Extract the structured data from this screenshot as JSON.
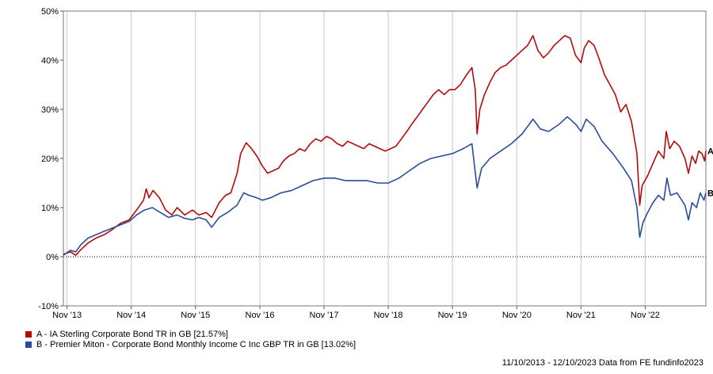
{
  "chart_data": {
    "type": "line",
    "ylim": [
      -10,
      50
    ],
    "y_ticks": [
      "-10%",
      "0%",
      "10%",
      "20%",
      "30%",
      "40%",
      "50%"
    ],
    "x_ticks": [
      {
        "label": "Nov '13",
        "date": "2013-11-01"
      },
      {
        "label": "Nov '14",
        "date": "2014-11-01"
      },
      {
        "label": "Nov '15",
        "date": "2015-11-01"
      },
      {
        "label": "Nov '16",
        "date": "2016-11-01"
      },
      {
        "label": "Nov '17",
        "date": "2017-11-01"
      },
      {
        "label": "Nov '18",
        "date": "2018-11-01"
      },
      {
        "label": "Nov '19",
        "date": "2019-11-01"
      },
      {
        "label": "Nov '20",
        "date": "2020-11-01"
      },
      {
        "label": "Nov '21",
        "date": "2021-11-01"
      },
      {
        "label": "Nov '22",
        "date": "2022-11-01"
      }
    ],
    "x_range": [
      "2013-10-11",
      "2023-10-12"
    ],
    "grid": "vertical",
    "zero_line": "dotted",
    "series": [
      {
        "marker": "A",
        "name": "A - IA Sterling Corporate Bond TR in GB [21.57%]",
        "color": "#b40a0a",
        "points": [
          [
            "2013-10-11",
            0.5
          ],
          [
            "2013-11-20",
            1.0
          ],
          [
            "2013-12-20",
            0.3
          ],
          [
            "2014-01-20",
            1.5
          ],
          [
            "2014-03-01",
            2.8
          ],
          [
            "2014-04-15",
            3.8
          ],
          [
            "2014-06-01",
            4.5
          ],
          [
            "2014-07-15",
            5.5
          ],
          [
            "2014-09-01",
            6.8
          ],
          [
            "2014-10-20",
            7.5
          ],
          [
            "2014-12-01",
            9.5
          ],
          [
            "2015-01-10",
            11.5
          ],
          [
            "2015-01-25",
            13.8
          ],
          [
            "2015-02-10",
            12.0
          ],
          [
            "2015-03-05",
            13.5
          ],
          [
            "2015-04-10",
            12.0
          ],
          [
            "2015-05-15",
            9.5
          ],
          [
            "2015-06-20",
            8.5
          ],
          [
            "2015-07-20",
            10.0
          ],
          [
            "2015-09-01",
            8.5
          ],
          [
            "2015-10-15",
            9.5
          ],
          [
            "2015-11-20",
            8.5
          ],
          [
            "2016-01-01",
            9.0
          ],
          [
            "2016-02-01",
            8.0
          ],
          [
            "2016-03-15",
            11.0
          ],
          [
            "2016-04-20",
            12.5
          ],
          [
            "2016-05-20",
            13.0
          ],
          [
            "2016-06-25",
            17.0
          ],
          [
            "2016-07-15",
            21.0
          ],
          [
            "2016-08-15",
            23.2
          ],
          [
            "2016-09-15",
            22.0
          ],
          [
            "2016-10-15",
            20.5
          ],
          [
            "2016-11-15",
            18.5
          ],
          [
            "2016-12-15",
            17.0
          ],
          [
            "2017-01-15",
            17.5
          ],
          [
            "2017-02-15",
            18.0
          ],
          [
            "2017-03-15",
            19.5
          ],
          [
            "2017-04-15",
            20.5
          ],
          [
            "2017-05-15",
            21.0
          ],
          [
            "2017-06-15",
            22.0
          ],
          [
            "2017-07-15",
            21.5
          ],
          [
            "2017-08-15",
            23.0
          ],
          [
            "2017-09-15",
            24.0
          ],
          [
            "2017-10-15",
            23.5
          ],
          [
            "2017-11-15",
            24.5
          ],
          [
            "2017-12-15",
            24.0
          ],
          [
            "2018-01-15",
            23.0
          ],
          [
            "2018-02-15",
            22.5
          ],
          [
            "2018-03-15",
            23.5
          ],
          [
            "2018-04-15",
            23.0
          ],
          [
            "2018-05-15",
            22.5
          ],
          [
            "2018-06-15",
            22.0
          ],
          [
            "2018-07-15",
            23.0
          ],
          [
            "2018-08-15",
            22.5
          ],
          [
            "2018-09-15",
            22.0
          ],
          [
            "2018-10-15",
            21.5
          ],
          [
            "2018-11-15",
            22.0
          ],
          [
            "2018-12-15",
            22.5
          ],
          [
            "2019-01-15",
            24.0
          ],
          [
            "2019-02-15",
            25.5
          ],
          [
            "2019-03-15",
            27.0
          ],
          [
            "2019-04-15",
            28.5
          ],
          [
            "2019-05-15",
            30.0
          ],
          [
            "2019-06-15",
            31.5
          ],
          [
            "2019-07-15",
            33.0
          ],
          [
            "2019-08-15",
            34.0
          ],
          [
            "2019-09-15",
            33.0
          ],
          [
            "2019-10-15",
            34.0
          ],
          [
            "2019-11-15",
            34.0
          ],
          [
            "2019-12-15",
            35.0
          ],
          [
            "2020-01-20",
            37.0
          ],
          [
            "2020-02-20",
            38.5
          ],
          [
            "2020-03-10",
            34.0
          ],
          [
            "2020-03-20",
            25.0
          ],
          [
            "2020-04-05",
            30.0
          ],
          [
            "2020-05-01",
            33.0
          ],
          [
            "2020-06-01",
            35.5
          ],
          [
            "2020-07-01",
            37.5
          ],
          [
            "2020-08-01",
            38.5
          ],
          [
            "2020-09-01",
            39.0
          ],
          [
            "2020-10-01",
            40.0
          ],
          [
            "2020-11-01",
            41.0
          ],
          [
            "2020-12-01",
            42.0
          ],
          [
            "2021-01-01",
            43.0
          ],
          [
            "2021-02-01",
            45.0
          ],
          [
            "2021-03-01",
            42.0
          ],
          [
            "2021-04-01",
            40.5
          ],
          [
            "2021-05-01",
            41.5
          ],
          [
            "2021-06-01",
            43.0
          ],
          [
            "2021-07-01",
            44.0
          ],
          [
            "2021-08-01",
            45.0
          ],
          [
            "2021-09-01",
            44.5
          ],
          [
            "2021-10-01",
            41.0
          ],
          [
            "2021-11-01",
            39.5
          ],
          [
            "2021-11-20",
            42.5
          ],
          [
            "2021-12-15",
            44.0
          ],
          [
            "2022-01-15",
            43.0
          ],
          [
            "2022-02-15",
            40.0
          ],
          [
            "2022-03-15",
            37.0
          ],
          [
            "2022-04-15",
            35.0
          ],
          [
            "2022-05-15",
            33.0
          ],
          [
            "2022-06-15",
            29.5
          ],
          [
            "2022-07-15",
            31.0
          ],
          [
            "2022-08-15",
            27.5
          ],
          [
            "2022-09-15",
            21.0
          ],
          [
            "2022-10-01",
            10.5
          ],
          [
            "2022-10-15",
            14.5
          ],
          [
            "2022-11-15",
            16.5
          ],
          [
            "2022-12-15",
            19.0
          ],
          [
            "2023-01-15",
            21.5
          ],
          [
            "2023-02-15",
            20.0
          ],
          [
            "2023-03-01",
            25.5
          ],
          [
            "2023-03-20",
            22.0
          ],
          [
            "2023-04-15",
            23.5
          ],
          [
            "2023-05-15",
            22.5
          ],
          [
            "2023-06-15",
            20.0
          ],
          [
            "2023-07-05",
            17.0
          ],
          [
            "2023-07-25",
            20.5
          ],
          [
            "2023-08-15",
            19.0
          ],
          [
            "2023-09-01",
            21.5
          ],
          [
            "2023-09-20",
            21.0
          ],
          [
            "2023-10-05",
            19.5
          ],
          [
            "2023-10-12",
            21.57
          ]
        ]
      },
      {
        "marker": "B",
        "name": "B - Premier Miton - Corporate Bond Monthly Income C Inc GBP TR in GB [13.02%]",
        "color": "#2b4c9b",
        "points": [
          [
            "2013-10-11",
            0.3
          ],
          [
            "2013-11-20",
            1.3
          ],
          [
            "2013-12-20",
            1.0
          ],
          [
            "2014-01-20",
            2.5
          ],
          [
            "2014-03-01",
            3.8
          ],
          [
            "2014-04-15",
            4.5
          ],
          [
            "2014-06-01",
            5.2
          ],
          [
            "2014-07-15",
            5.8
          ],
          [
            "2014-09-01",
            6.5
          ],
          [
            "2014-10-20",
            7.2
          ],
          [
            "2014-12-01",
            8.5
          ],
          [
            "2015-01-15",
            9.5
          ],
          [
            "2015-03-01",
            10.0
          ],
          [
            "2015-04-15",
            9.0
          ],
          [
            "2015-06-01",
            8.0
          ],
          [
            "2015-07-20",
            8.5
          ],
          [
            "2015-09-01",
            7.8
          ],
          [
            "2015-10-15",
            7.5
          ],
          [
            "2015-11-20",
            8.0
          ],
          [
            "2016-01-01",
            7.5
          ],
          [
            "2016-02-01",
            6.0
          ],
          [
            "2016-03-15",
            8.0
          ],
          [
            "2016-05-01",
            9.0
          ],
          [
            "2016-06-25",
            10.5
          ],
          [
            "2016-08-01",
            13.0
          ],
          [
            "2016-09-01",
            12.5
          ],
          [
            "2016-10-15",
            12.0
          ],
          [
            "2016-11-15",
            11.5
          ],
          [
            "2017-01-01",
            12.0
          ],
          [
            "2017-03-01",
            13.0
          ],
          [
            "2017-05-01",
            13.5
          ],
          [
            "2017-07-01",
            14.5
          ],
          [
            "2017-09-01",
            15.5
          ],
          [
            "2017-11-01",
            16.0
          ],
          [
            "2018-01-01",
            16.0
          ],
          [
            "2018-03-01",
            15.5
          ],
          [
            "2018-05-01",
            15.5
          ],
          [
            "2018-07-01",
            15.5
          ],
          [
            "2018-09-01",
            15.0
          ],
          [
            "2018-11-01",
            15.0
          ],
          [
            "2019-01-01",
            16.0
          ],
          [
            "2019-03-01",
            17.5
          ],
          [
            "2019-05-01",
            19.0
          ],
          [
            "2019-07-01",
            20.0
          ],
          [
            "2019-09-01",
            20.5
          ],
          [
            "2019-11-01",
            21.0
          ],
          [
            "2020-01-01",
            22.0
          ],
          [
            "2020-02-20",
            23.0
          ],
          [
            "2020-03-20",
            14.0
          ],
          [
            "2020-04-15",
            18.0
          ],
          [
            "2020-06-01",
            20.0
          ],
          [
            "2020-08-01",
            21.5
          ],
          [
            "2020-10-01",
            23.0
          ],
          [
            "2020-12-01",
            25.0
          ],
          [
            "2021-02-01",
            28.0
          ],
          [
            "2021-03-15",
            26.0
          ],
          [
            "2021-05-01",
            25.5
          ],
          [
            "2021-07-01",
            27.0
          ],
          [
            "2021-08-15",
            28.5
          ],
          [
            "2021-10-01",
            27.0
          ],
          [
            "2021-11-01",
            25.5
          ],
          [
            "2021-12-01",
            28.0
          ],
          [
            "2022-01-15",
            26.5
          ],
          [
            "2022-03-01",
            23.5
          ],
          [
            "2022-05-01",
            21.0
          ],
          [
            "2022-07-01",
            18.0
          ],
          [
            "2022-08-15",
            15.5
          ],
          [
            "2022-09-15",
            10.0
          ],
          [
            "2022-10-01",
            4.0
          ],
          [
            "2022-10-20",
            7.0
          ],
          [
            "2022-11-15",
            9.0
          ],
          [
            "2022-12-15",
            11.0
          ],
          [
            "2023-01-15",
            12.5
          ],
          [
            "2023-02-15",
            11.5
          ],
          [
            "2023-03-05",
            16.0
          ],
          [
            "2023-03-25",
            12.5
          ],
          [
            "2023-05-01",
            13.0
          ],
          [
            "2023-06-15",
            10.5
          ],
          [
            "2023-07-05",
            7.5
          ],
          [
            "2023-07-25",
            11.0
          ],
          [
            "2023-08-20",
            10.0
          ],
          [
            "2023-09-10",
            13.0
          ],
          [
            "2023-10-01",
            11.5
          ],
          [
            "2023-10-12",
            13.02
          ]
        ]
      }
    ],
    "footer": "11/10/2013 - 12/10/2023 Data from FE fundinfo2023"
  }
}
